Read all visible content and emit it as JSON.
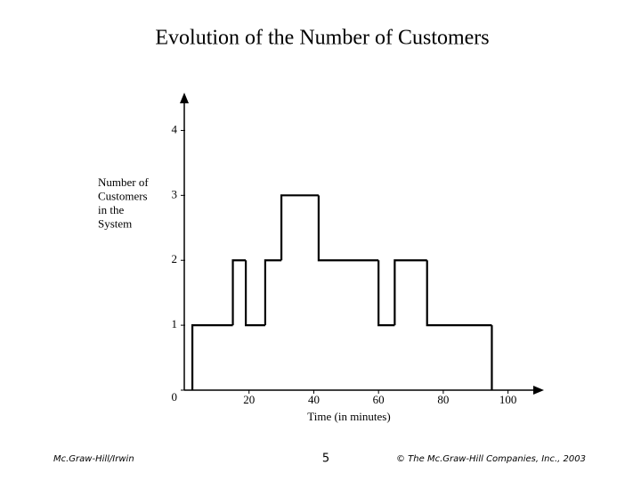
{
  "chart_data": {
    "type": "step",
    "title": "Evolution of the Number of Customers",
    "xlabel": "Time (in minutes)",
    "ylabel_lines": [
      "Number of",
      "Customers",
      "in the",
      "System"
    ],
    "x": [
      2.5,
      15,
      19,
      25,
      30,
      41.5,
      60,
      65,
      75,
      95
    ],
    "values": [
      1,
      2,
      1,
      2,
      3,
      2,
      1,
      2,
      1,
      0
    ],
    "color": "#000000",
    "xlim": [
      0,
      110
    ],
    "ylim": [
      0,
      4.5
    ],
    "xticks": [
      20,
      40,
      60,
      80,
      100
    ],
    "yticks": [
      0,
      1,
      2,
      3,
      4
    ]
  },
  "footer": {
    "left": "Mc.Graw-Hill/Irwin",
    "center": "5",
    "right": "© The Mc.Graw-Hill Companies, Inc., 2003"
  }
}
